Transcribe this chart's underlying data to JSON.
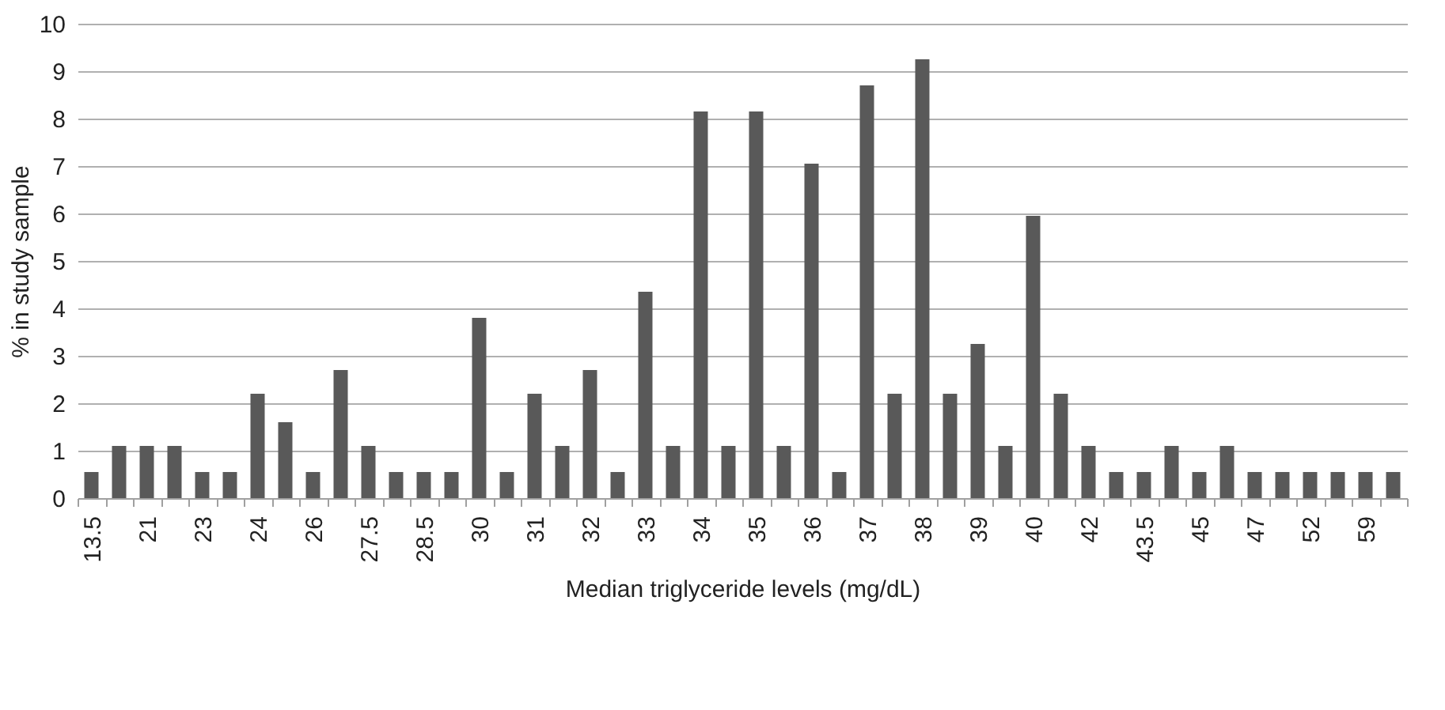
{
  "chart_data": {
    "type": "bar",
    "xlabel": "Median triglyceride levels (mg/dL)",
    "ylabel": "% in study sample",
    "categories": [
      "13.5",
      null,
      "21",
      null,
      "23",
      null,
      "24",
      null,
      "26",
      null,
      "27.5",
      null,
      "28.5",
      null,
      "30",
      null,
      "31",
      null,
      "32",
      null,
      "33",
      null,
      "34",
      null,
      "35",
      null,
      "36",
      null,
      "37",
      null,
      "38",
      null,
      "39",
      null,
      "40",
      null,
      "42",
      null,
      "43.5",
      null,
      "45",
      null,
      "47",
      null,
      "52",
      null,
      "59",
      null
    ],
    "values": [
      0.55,
      1.1,
      1.1,
      1.1,
      0.55,
      0.55,
      2.2,
      1.6,
      0.55,
      2.7,
      1.1,
      0.55,
      0.55,
      0.55,
      3.8,
      0.55,
      2.2,
      1.1,
      2.7,
      0.55,
      4.35,
      1.1,
      8.15,
      1.1,
      8.15,
      1.1,
      7.05,
      0.55,
      8.7,
      2.2,
      9.25,
      2.2,
      3.25,
      1.1,
      5.95,
      2.2,
      1.1,
      0.55,
      0.55,
      1.1,
      0.55,
      1.1,
      0.55,
      0.55,
      0.55,
      0.55,
      0.55,
      0.55
    ],
    "color": "#595959",
    "ylim": [
      0,
      10
    ],
    "yticks": [
      0,
      1,
      2,
      3,
      4,
      5,
      6,
      7,
      8,
      9,
      10
    ],
    "grid": "y"
  }
}
